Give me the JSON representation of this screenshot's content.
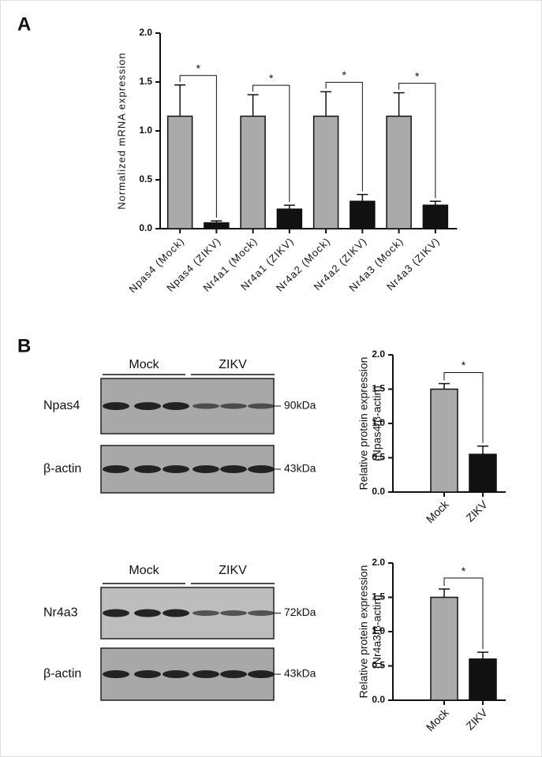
{
  "panels": [
    "A",
    "B"
  ],
  "chart_data": [
    {
      "type": "bar",
      "y_label": [
        "Normalized mRNA expression"
      ],
      "categories": [
        "Npas4 (Mock)",
        "Npas4 (ZIKV)",
        "Nr4a1 (Mock)",
        "Nr4a1 (ZIKV)",
        "Nr4a2 (Mock)",
        "Nr4a2 (ZIKV)",
        "Nr4a3 (Mock)",
        "Nr4a3 (ZIKV)"
      ],
      "values": [
        1.15,
        0.06,
        1.15,
        0.2,
        1.15,
        0.28,
        1.15,
        0.24
      ],
      "errors": [
        0.32,
        0.02,
        0.22,
        0.04,
        0.25,
        0.07,
        0.24,
        0.04
      ],
      "colors": [
        "#aaaaaa",
        "#111111",
        "#aaaaaa",
        "#111111",
        "#aaaaaa",
        "#111111",
        "#aaaaaa",
        "#111111"
      ],
      "ylim": [
        0,
        2
      ],
      "yticks": [
        {
          "value": 0,
          "label": "0.0"
        },
        {
          "value": 0.5,
          "label": "0.5"
        },
        {
          "value": 1,
          "label": "1.0"
        },
        {
          "value": 1.5,
          "label": "1.5"
        },
        {
          "value": 2,
          "label": "2.0"
        }
      ],
      "annotations": [
        "*",
        "*",
        "*",
        "*"
      ]
    },
    {
      "type": "bar",
      "y_label": [
        "Relative protein expression",
        "(Npas4/β-actin)"
      ],
      "categories": [
        "Mock",
        "ZIKV"
      ],
      "values": [
        1.5,
        0.55
      ],
      "errors": [
        0.08,
        0.12
      ],
      "colors": [
        "#aaaaaa",
        "#111111"
      ],
      "ylim": [
        0,
        2
      ],
      "yticks": [
        {
          "value": 0,
          "label": "0.0"
        },
        {
          "value": 0.5,
          "label": "0.5"
        },
        {
          "value": 1,
          "label": "1.0"
        },
        {
          "value": 1.5,
          "label": "1.5"
        },
        {
          "value": 2,
          "label": "2.0"
        }
      ],
      "annotations": [
        "*"
      ]
    },
    {
      "type": "bar",
      "y_label": [
        "Relative protein expression",
        "(Nr4a3/β-actin)"
      ],
      "categories": [
        "Mock",
        "ZIKV"
      ],
      "values": [
        1.5,
        0.6
      ],
      "errors": [
        0.12,
        0.1
      ],
      "colors": [
        "#aaaaaa",
        "#111111"
      ],
      "ylim": [
        0,
        2
      ],
      "yticks": [
        {
          "value": 0,
          "label": "0.0"
        },
        {
          "value": 0.5,
          "label": "0.5"
        },
        {
          "value": 1,
          "label": "1.0"
        },
        {
          "value": 1.5,
          "label": "1.5"
        },
        {
          "value": 2,
          "label": "2.0"
        }
      ],
      "annotations": [
        "*"
      ]
    }
  ],
  "blots": [
    {
      "groups": [
        "Mock",
        "ZIKV"
      ],
      "rows": [
        {
          "label": "Npas4",
          "size": "90kDa"
        },
        {
          "label": "β-actin",
          "size": "43kDa"
        }
      ]
    },
    {
      "groups": [
        "Mock",
        "ZIKV"
      ],
      "rows": [
        {
          "label": "Nr4a3",
          "size": "72kDa"
        },
        {
          "label": "β-actin",
          "size": "43kDa"
        }
      ]
    }
  ]
}
